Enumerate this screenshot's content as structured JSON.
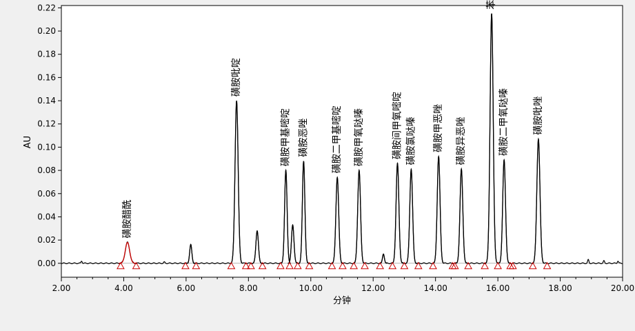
{
  "chart_data": {
    "type": "line",
    "title": "",
    "xlabel": "分钟",
    "ylabel": "AU",
    "xlim": [
      2.0,
      20.0
    ],
    "ylim": [
      -0.012,
      0.222
    ],
    "xticks": [
      "2.00",
      "4.00",
      "6.00",
      "8.00",
      "10.00",
      "12.00",
      "14.00",
      "16.00",
      "18.00",
      "20.00"
    ],
    "yticks": [
      "0.00",
      "0.02",
      "0.04",
      "0.06",
      "0.08",
      "0.10",
      "0.12",
      "0.14",
      "0.16",
      "0.18",
      "0.20",
      "0.22"
    ],
    "grid": false,
    "baseline": 0.0,
    "peaks": [
      {
        "label": "磺胺醋酰",
        "time": 4.12,
        "height": 0.018,
        "width": 0.07,
        "color": "#cc0000"
      },
      {
        "label": "",
        "time": 6.15,
        "height": 0.016,
        "width": 0.035,
        "color": "#000000"
      },
      {
        "label": "磺胺吡啶",
        "time": 7.62,
        "height": 0.14,
        "width": 0.05,
        "color": "#000000"
      },
      {
        "label": "",
        "time": 8.28,
        "height": 0.028,
        "width": 0.04,
        "color": "#000000"
      },
      {
        "label": "磺胺甲基嘧啶",
        "time": 9.2,
        "height": 0.08,
        "width": 0.04,
        "color": "#000000"
      },
      {
        "label": "",
        "time": 9.42,
        "height": 0.033,
        "width": 0.04,
        "color": "#000000"
      },
      {
        "label": "磺胺恶唑",
        "time": 9.77,
        "height": 0.088,
        "width": 0.04,
        "color": "#000000"
      },
      {
        "label": "磺胺二甲基嘧啶",
        "time": 10.85,
        "height": 0.074,
        "width": 0.045,
        "color": "#000000"
      },
      {
        "label": "磺胺甲氧哒嗪",
        "time": 11.55,
        "height": 0.08,
        "width": 0.045,
        "color": "#000000"
      },
      {
        "label": "",
        "time": 12.33,
        "height": 0.008,
        "width": 0.03,
        "color": "#000000"
      },
      {
        "label": "磺胺间甲氧嘧啶",
        "time": 12.78,
        "height": 0.086,
        "width": 0.045,
        "color": "#000000"
      },
      {
        "label": "磺胺氯哒嗪",
        "time": 13.22,
        "height": 0.081,
        "width": 0.045,
        "color": "#000000"
      },
      {
        "label": "磺胺甲恶唑",
        "time": 14.1,
        "height": 0.092,
        "width": 0.045,
        "color": "#000000"
      },
      {
        "label": "磺胺异恶唑",
        "time": 14.83,
        "height": 0.081,
        "width": 0.045,
        "color": "#000000"
      },
      {
        "label": "苯酰磺胺",
        "time": 15.8,
        "height": 0.215,
        "width": 0.05,
        "color": "#000000"
      },
      {
        "label": "磺胺二甲氧哒嗪",
        "time": 16.2,
        "height": 0.089,
        "width": 0.045,
        "color": "#000000"
      },
      {
        "label": "磺胺吡唑",
        "time": 17.3,
        "height": 0.107,
        "width": 0.05,
        "color": "#000000"
      }
    ],
    "noise": [
      {
        "time": 2.65,
        "height": 0.002
      },
      {
        "time": 5.3,
        "height": 0.001
      },
      {
        "time": 18.9,
        "height": 0.003
      },
      {
        "time": 19.4,
        "height": 0.002
      },
      {
        "time": 19.85,
        "height": 0.002
      }
    ],
    "markers": [
      {
        "time": 3.9,
        "color": "#cc0000"
      },
      {
        "time": 4.4,
        "color": "#cc0000"
      },
      {
        "time": 5.98,
        "color": "#cc0000"
      },
      {
        "time": 6.32,
        "color": "#cc0000"
      },
      {
        "time": 7.45,
        "color": "#cc0000"
      },
      {
        "time": 7.92,
        "color": "#cc0000"
      },
      {
        "time": 8.08,
        "color": "#cc0000"
      },
      {
        "time": 8.45,
        "color": "#cc0000"
      },
      {
        "time": 9.03,
        "color": "#cc0000"
      },
      {
        "time": 9.32,
        "color": "#cc0000"
      },
      {
        "time": 9.58,
        "color": "#cc0000"
      },
      {
        "time": 9.95,
        "color": "#cc0000"
      },
      {
        "time": 10.68,
        "color": "#cc0000"
      },
      {
        "time": 11.02,
        "color": "#cc0000"
      },
      {
        "time": 11.38,
        "color": "#cc0000"
      },
      {
        "time": 11.73,
        "color": "#cc0000"
      },
      {
        "time": 12.22,
        "color": "#cc0000"
      },
      {
        "time": 12.62,
        "color": "#cc0000"
      },
      {
        "time": 13.0,
        "color": "#cc0000"
      },
      {
        "time": 13.45,
        "color": "#cc0000"
      },
      {
        "time": 13.92,
        "color": "#cc0000"
      },
      {
        "time": 14.55,
        "color": "#cc0000"
      },
      {
        "time": 14.62,
        "color": "#cc0000"
      },
      {
        "time": 15.05,
        "color": "#cc0000"
      },
      {
        "time": 15.58,
        "color": "#cc0000"
      },
      {
        "time": 16.0,
        "color": "#cc0000"
      },
      {
        "time": 16.4,
        "color": "#cc0000"
      },
      {
        "time": 16.48,
        "color": "#cc0000"
      },
      {
        "time": 17.12,
        "color": "#cc0000"
      },
      {
        "time": 17.58,
        "color": "#cc0000"
      }
    ],
    "colors": {
      "trace": "#000000",
      "highlight": "#cc0000",
      "plot_bg": "#ffffff",
      "page_bg": "#f0f0f0"
    }
  }
}
